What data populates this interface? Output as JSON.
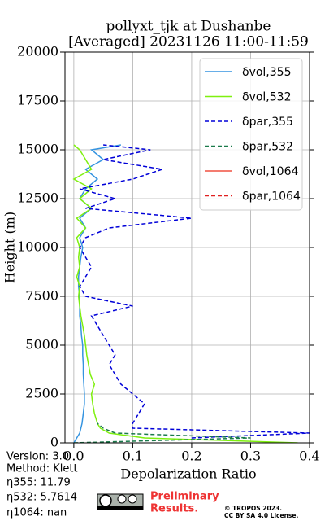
{
  "chart_data": {
    "type": "line",
    "title": [
      "pollyxt_tjk at Dushanbe",
      "[Averaged] 20231126 11:00-11:59"
    ],
    "x_label": "Depolarization Ratio",
    "y_label": "Height (m)",
    "xlim": [
      -0.015,
      0.4
    ],
    "xticks": [
      {
        "value": 0,
        "label": "0.0"
      },
      0.1,
      0.2,
      0.3,
      0.4
    ],
    "ylim": [
      0,
      20000
    ],
    "yticks": [
      0,
      2500,
      5000,
      7500,
      10000,
      12500,
      15000,
      17500,
      20000
    ],
    "grid": true,
    "legend": "upper right",
    "heights": [
      0,
      250,
      500,
      750,
      1000,
      1500,
      2000,
      2500,
      3000,
      3500,
      4000,
      4500,
      5000,
      5500,
      6000,
      6500,
      7000,
      7500,
      8000,
      8500,
      9000,
      9500,
      10000,
      10500,
      11000,
      11500,
      12000,
      12500,
      13000,
      13500,
      14000,
      14500,
      15000,
      15250
    ],
    "series": [
      {
        "name": "δvol,355",
        "color": "#3594e0",
        "linestyle": "solid",
        "values": [
          0.0,
          0.005,
          0.01,
          0.012,
          0.014,
          0.016,
          0.018,
          0.018,
          0.017,
          0.016,
          0.016,
          0.015,
          0.015,
          0.013,
          0.012,
          0.01,
          0.01,
          0.01,
          0.008,
          0.008,
          0.01,
          0.012,
          0.015,
          0.01,
          0.02,
          0.01,
          0.03,
          0.01,
          0.02,
          0.04,
          0.02,
          0.05,
          0.03,
          0.08
        ]
      },
      {
        "name": "δvol,532",
        "color": "#7ff00f",
        "linestyle": "solid",
        "values": [
          0.38,
          0.12,
          0.06,
          0.045,
          0.04,
          0.035,
          0.032,
          0.03,
          0.035,
          0.028,
          0.025,
          0.022,
          0.02,
          0.018,
          0.015,
          0.012,
          0.01,
          0.008,
          0.01,
          0.005,
          0.01,
          0.008,
          0.01,
          0.005,
          0.02,
          0.005,
          0.03,
          0.01,
          0.03,
          0.0,
          0.03,
          0.02,
          0.01,
          0.0
        ]
      },
      {
        "name": "δpar,355",
        "color": "#0000d8",
        "linestyle": "dashed",
        "values": [
          null,
          0.2,
          0.4,
          0.1,
          0.1,
          0.11,
          0.12,
          0.1,
          0.08,
          0.07,
          0.06,
          0.07,
          0.06,
          0.05,
          0.04,
          0.03,
          0.1,
          0.02,
          0.01,
          0.02,
          0.03,
          0.02,
          0.01,
          0.02,
          0.06,
          0.2,
          0.02,
          0.07,
          0.01,
          0.1,
          0.15,
          0.05,
          0.13,
          0.05
        ]
      },
      {
        "name": "δpar,532",
        "color": "#1a7a4a",
        "linestyle": "dashed",
        "values": [
          0.0,
          0.3,
          0.07,
          0.05,
          0.04,
          null,
          null,
          null,
          null,
          null,
          null,
          null,
          null,
          null,
          null,
          null,
          null,
          null,
          null,
          null,
          null,
          null,
          null,
          null,
          null,
          null,
          null,
          null,
          null,
          null,
          null,
          null,
          null,
          null
        ]
      },
      {
        "name": "δvol,1064",
        "color": "#f05040",
        "linestyle": "solid",
        "values": [
          null,
          null,
          null,
          null,
          null,
          null,
          null,
          null,
          null,
          null,
          null,
          null,
          null,
          null,
          null,
          null,
          null,
          null,
          null,
          null,
          null,
          null,
          null,
          null,
          null,
          null,
          null,
          null,
          null,
          null,
          null,
          null,
          null,
          null
        ]
      },
      {
        "name": "δpar,1064",
        "color": "#e02020",
        "linestyle": "dashed",
        "values": [
          null,
          null,
          null,
          null,
          null,
          null,
          null,
          null,
          null,
          null,
          null,
          null,
          null,
          null,
          null,
          null,
          null,
          null,
          null,
          null,
          null,
          null,
          null,
          null,
          null,
          null,
          null,
          null,
          null,
          null,
          null,
          null,
          null,
          null
        ]
      }
    ],
    "annotations": [
      "Version: 3.0",
      "Method: Klett",
      "η355:  11.79",
      "η532: 5.7614",
      "η1064:    nan"
    ],
    "watermark": [
      "Preliminary",
      "Results."
    ],
    "copyright": [
      "© TROPOS 2023.",
      "CC BY SA 4.0 License."
    ]
  }
}
